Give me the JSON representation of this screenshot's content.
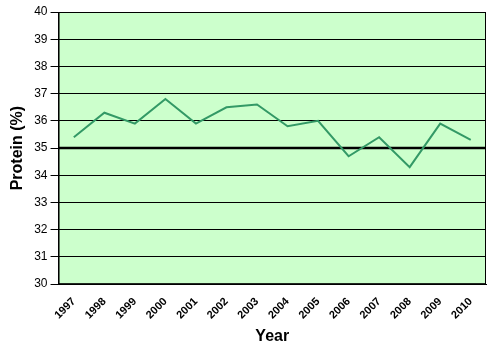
{
  "chart_data": {
    "type": "line",
    "x_label": "Year",
    "y_label": "Protein (%)",
    "categories": [
      "1997",
      "1998",
      "1999",
      "2000",
      "2001",
      "2002",
      "2003",
      "2004",
      "2005",
      "2006",
      "2007",
      "2008",
      "2009",
      "2010"
    ],
    "values": [
      35.4,
      36.3,
      35.9,
      36.8,
      35.9,
      36.5,
      36.6,
      35.8,
      36.0,
      34.7,
      35.4,
      34.3,
      35.9,
      35.3
    ],
    "color": "#339966",
    "marker": "none",
    "reference_line": 35,
    "ylim": [
      30,
      40
    ],
    "yticks": [
      30,
      31,
      32,
      33,
      34,
      35,
      36,
      37,
      38,
      39,
      40
    ],
    "grid": true
  }
}
